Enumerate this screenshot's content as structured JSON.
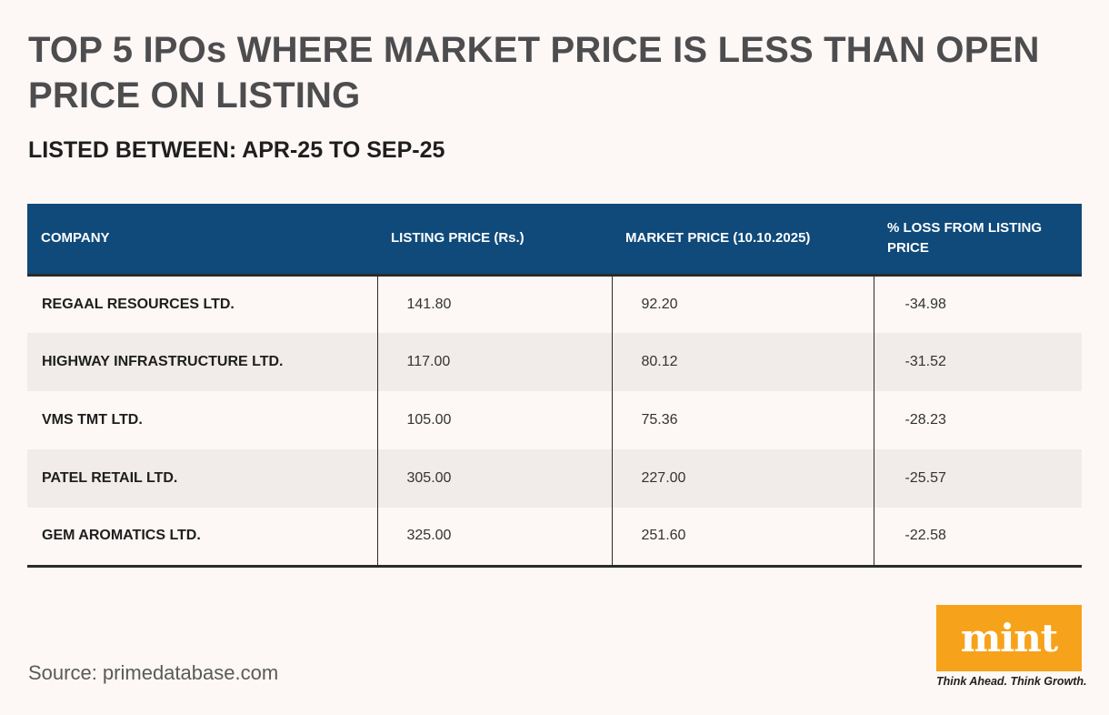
{
  "title": "TOP 5 IPOs WHERE MARKET PRICE IS LESS THAN OPEN PRICE ON LISTING",
  "subtitle": "LISTED BETWEEN: APR-25 TO SEP-25",
  "chart_data": {
    "type": "table",
    "columns": [
      "COMPANY",
      "LISTING PRICE (Rs.)",
      "MARKET PRICE (10.10.2025)",
      "% LOSS FROM LISTING PRICE"
    ],
    "rows": [
      [
        "REGAAL RESOURCES LTD.",
        "141.80",
        "92.20",
        "-34.98"
      ],
      [
        "HIGHWAY INFRASTRUCTURE LTD.",
        "117.00",
        "80.12",
        "-31.52"
      ],
      [
        "VMS TMT LTD.",
        "105.00",
        "75.36",
        "-28.23"
      ],
      [
        "PATEL RETAIL LTD.",
        "305.00",
        "227.00",
        "-25.57"
      ],
      [
        "GEM AROMATICS LTD.",
        "325.00",
        "251.60",
        "-22.58"
      ]
    ]
  },
  "source": "Source: primedatabase.com",
  "logo": {
    "text": "mint",
    "tagline": "Think Ahead. Think Growth.",
    "color": "#f7a21b"
  },
  "colors": {
    "header_bg": "#0f4a7a",
    "background": "#fdf7f5",
    "alt_row": "#f1ecea"
  }
}
